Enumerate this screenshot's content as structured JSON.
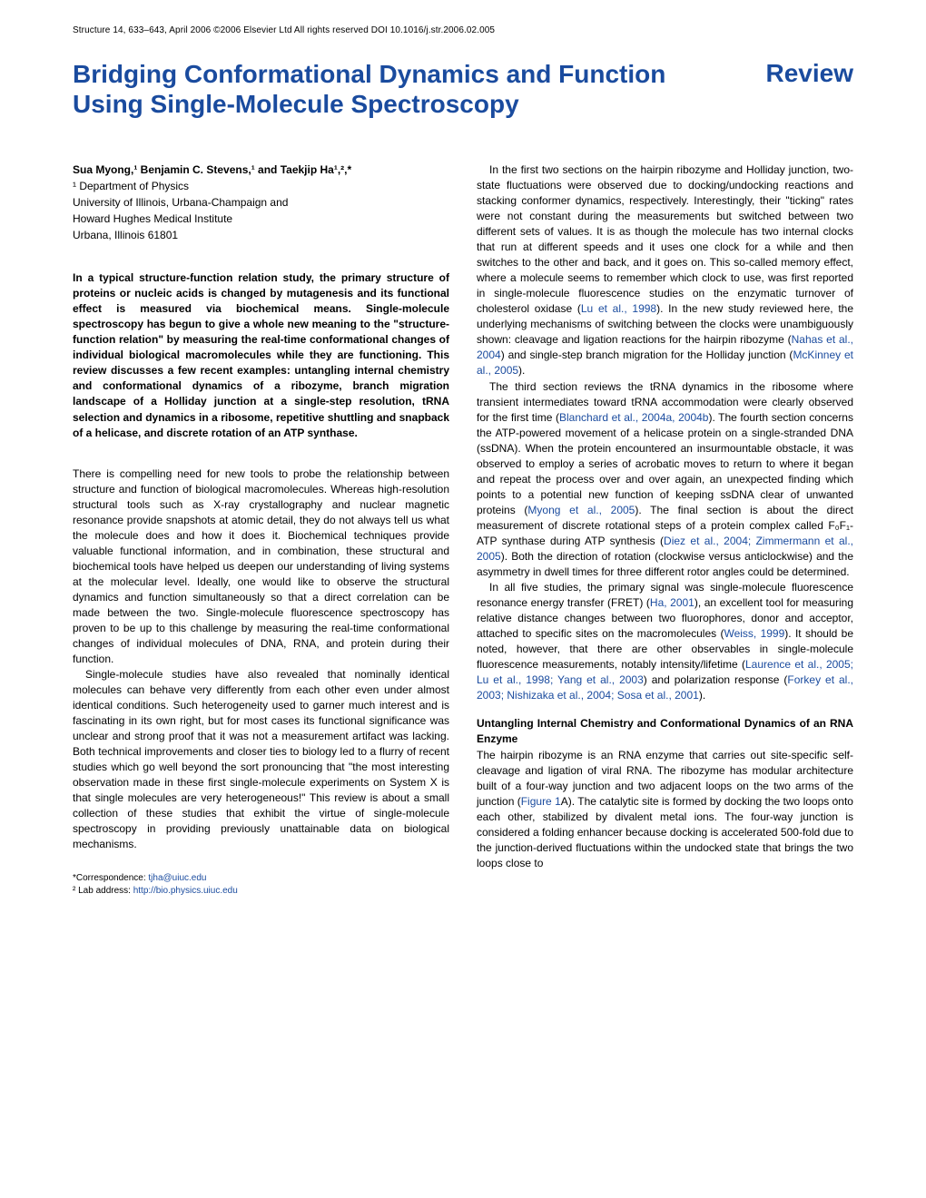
{
  "header": {
    "journal_line": "Structure 14, 633–643, April 2006 ©2006 Elsevier Ltd All rights reserved   DOI 10.1016/j.str.2006.02.005"
  },
  "title": "Bridging Conformational Dynamics and Function Using Single-Molecule Spectroscopy",
  "review_label": "Review",
  "authors_line": "Sua Myong,¹ Benjamin C. Stevens,¹ and Taekjip Ha¹,²,*",
  "affiliations": [
    "¹ Department of Physics",
    "University of Illinois, Urbana-Champaign and",
    "Howard Hughes Medical Institute",
    "Urbana, Illinois 61801"
  ],
  "abstract": "In a typical structure-function relation study, the primary structure of proteins or nucleic acids is changed by mutagenesis and its functional effect is measured via biochemical means. Single-molecule spectroscopy has begun to give a whole new meaning to the \"structure-function relation\" by measuring the real-time conformational changes of individual biological macromolecules while they are functioning. This review discusses a few recent examples: untangling internal chemistry and conformational dynamics of a ribozyme, branch migration landscape of a Holliday junction at a single-step resolution, tRNA selection and dynamics in a ribosome, repetitive shuttling and snapback of a helicase, and discrete rotation of an ATP synthase.",
  "col1_p1": "There is compelling need for new tools to probe the relationship between structure and function of biological macromolecules. Whereas high-resolution structural tools such as X-ray crystallography and nuclear magnetic resonance provide snapshots at atomic detail, they do not always tell us what the molecule does and how it does it. Biochemical techniques provide valuable functional information, and in combination, these structural and biochemical tools have helped us deepen our understanding of living systems at the molecular level. Ideally, one would like to observe the structural dynamics and function simultaneously so that a direct correlation can be made between the two. Single-molecule fluorescence spectroscopy has proven to be up to this challenge by measuring the real-time conformational changes of individual molecules of DNA, RNA, and protein during their function.",
  "col1_p2": "Single-molecule studies have also revealed that nominally identical molecules can behave very differently from each other even under almost identical conditions. Such heterogeneity used to garner much interest and is fascinating in its own right, but for most cases its functional significance was unclear and strong proof that it was not a measurement artifact was lacking. Both technical improvements and closer ties to biology led to a flurry of recent studies which go well beyond the sort pronouncing that \"the most interesting observation made in these first single-molecule experiments on System X is that single molecules are very heterogeneous!\" This review is about a small collection of these studies that exhibit the virtue of single-molecule spectroscopy in providing previously unattainable data on biological mechanisms.",
  "col2_p1_a": "In the first two sections on the hairpin ribozyme and Holliday junction, two-state fluctuations were observed due to docking/undocking reactions and stacking conformer dynamics, respectively. Interestingly, their \"ticking\" rates were not constant during the measurements but switched between two different sets of values. It is as though the molecule has two internal clocks that run at different speeds and it uses one clock for a while and then switches to the other and back, and it goes on. This so-called memory effect, where a molecule seems to remember which clock to use, was first reported in single-molecule fluorescence studies on the enzymatic turnover of cholesterol oxidase (",
  "col2_p1_link1": "Lu et al., 1998",
  "col2_p1_b": "). In the new study reviewed here, the underlying mechanisms of switching between the clocks were unambiguously shown: cleavage and ligation reactions for the hairpin ribozyme (",
  "col2_p1_link2": "Nahas et al., 2004",
  "col2_p1_c": ") and single-step branch migration for the Holliday junction (",
  "col2_p1_link3": "McKinney et al., 2005",
  "col2_p1_d": ").",
  "col2_p2_a": "The third section reviews the tRNA dynamics in the ribosome where transient intermediates toward tRNA accommodation were clearly observed for the first time (",
  "col2_p2_link1": "Blanchard et al., 2004a, 2004b",
  "col2_p2_b": "). The fourth section concerns the ATP-powered movement of a helicase protein on a single-stranded DNA (ssDNA). When the protein encountered an insurmountable obstacle, it was observed to employ a series of acrobatic moves to return to where it began and repeat the process over and over again, an unexpected finding which points to a potential new function of keeping ssDNA clear of unwanted proteins (",
  "col2_p2_link2": "Myong et al., 2005",
  "col2_p2_c": "). The final section is about the direct measurement of discrete rotational steps of a protein complex called F₀F₁-ATP synthase during ATP synthesis (",
  "col2_p2_link3": "Diez et al., 2004; Zimmermann et al., 2005",
  "col2_p2_d": "). Both the direction of rotation (clockwise versus anticlockwise) and the asymmetry in dwell times for three different rotor angles could be determined.",
  "col2_p3_a": "In all five studies, the primary signal was single-molecule fluorescence resonance energy transfer (FRET) (",
  "col2_p3_link1": "Ha, 2001",
  "col2_p3_b": "), an excellent tool for measuring relative distance changes between two fluorophores, donor and acceptor, attached to specific sites on the macromolecules (",
  "col2_p3_link2": "Weiss, 1999",
  "col2_p3_c": "). It should be noted, however, that there are other observables in single-molecule fluorescence measurements, notably intensity/lifetime (",
  "col2_p3_link3": "Laurence et al., 2005; Lu et al., 1998; Yang et al., 2003",
  "col2_p3_d": ") and polarization response (",
  "col2_p3_link4": "Forkey et al., 2003; Nishizaka et al., 2004; Sosa et al., 2001",
  "col2_p3_e": ").",
  "section_head": "Untangling Internal Chemistry and Conformational Dynamics of an RNA Enzyme",
  "col2_p4_a": "The hairpin ribozyme is an RNA enzyme that carries out site-specific self-cleavage and ligation of viral RNA. The ribozyme has modular architecture built of a four-way junction and two adjacent loops on the two arms of the junction (",
  "col2_p4_link1": "Figure 1",
  "col2_p4_b": "A). The catalytic site is formed by docking the two loops onto each other, stabilized by divalent metal ions. The four-way junction is considered a folding enhancer because docking is accelerated 500-fold due to the junction-derived fluctuations within the undocked state that brings the two loops close to",
  "footer": {
    "correspondence_label": "*Correspondence: ",
    "correspondence_email": "tjha@uiuc.edu",
    "lab_label": "² Lab address: ",
    "lab_url": "http://bio.physics.uiuc.edu"
  },
  "colors": {
    "heading": "#1a4b9e",
    "link": "#1a4b9e",
    "text": "#000000",
    "background": "#ffffff"
  },
  "typography": {
    "title_fontsize": 28,
    "body_fontsize": 12,
    "header_fontsize": 10,
    "footer_fontsize": 10
  }
}
